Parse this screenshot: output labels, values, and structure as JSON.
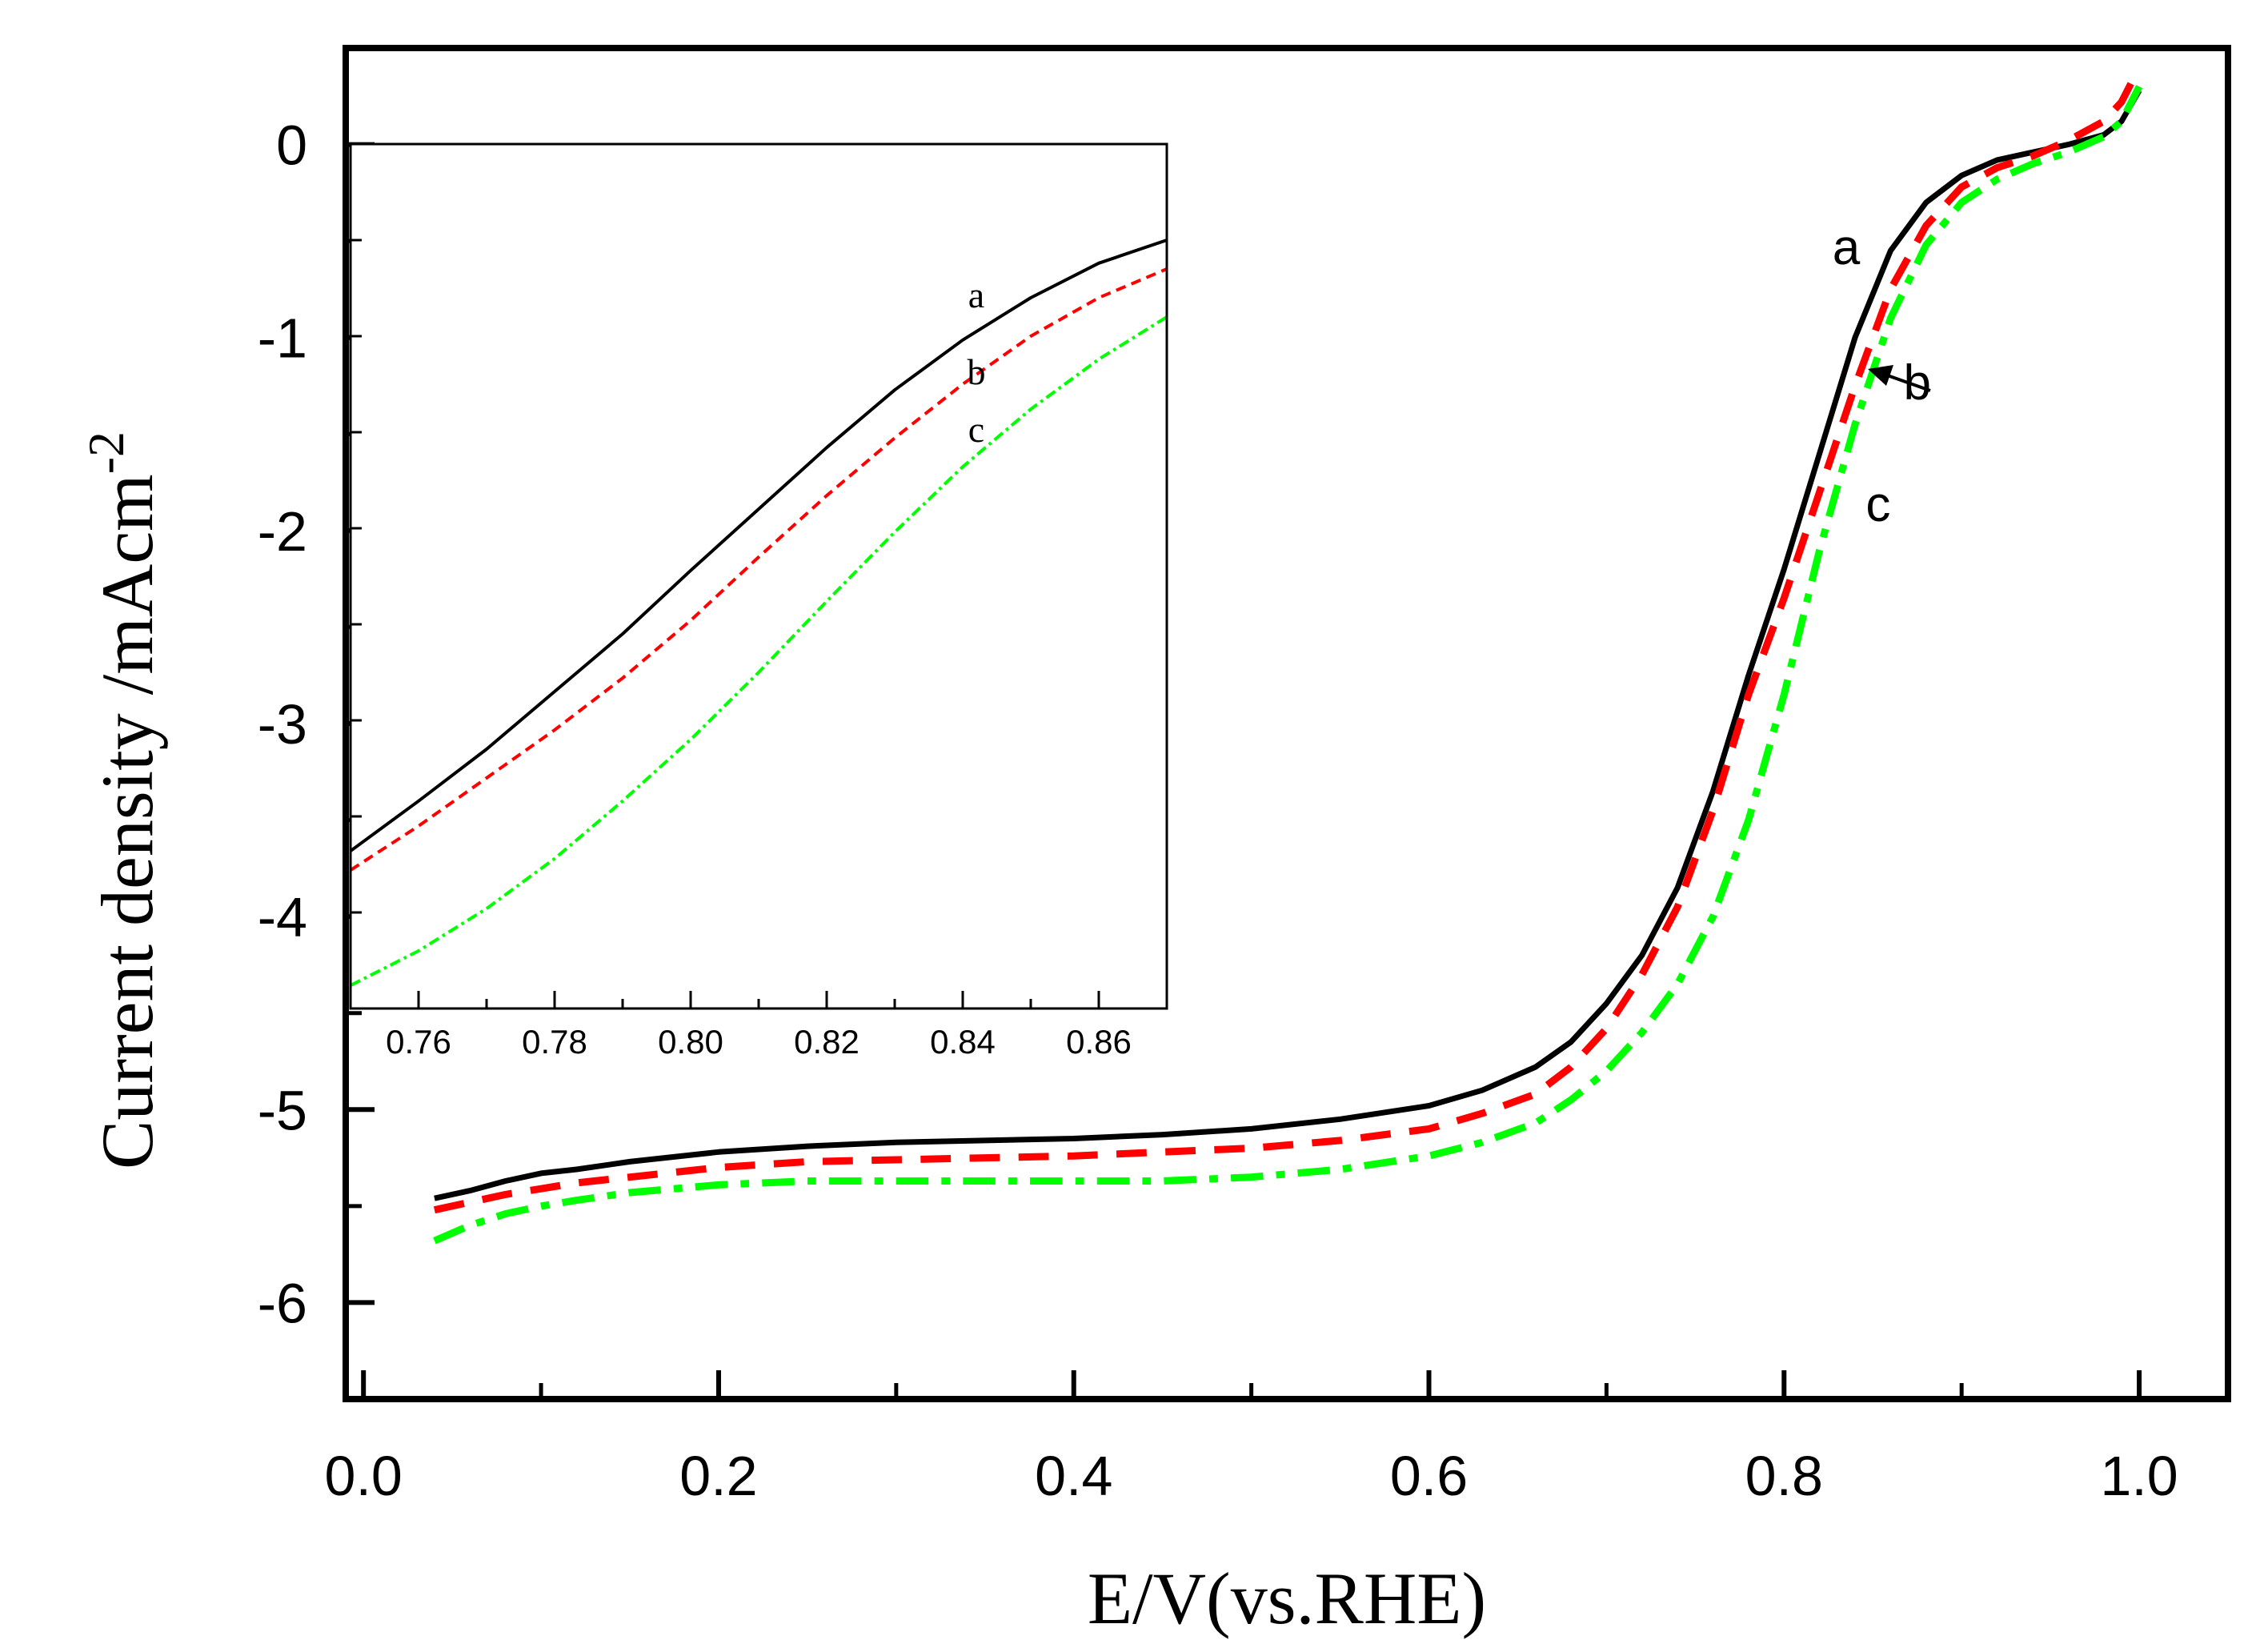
{
  "chart_data": [
    {
      "id": "main",
      "type": "line",
      "xlabel": "E/V(vs.RHE)",
      "ylabel_main": "Current density /mAcm",
      "ylabel_sup": "-2",
      "xlim": [
        -0.01,
        1.05
      ],
      "ylim": [
        -6.5,
        0.5
      ],
      "x_ticks": [
        0.0,
        0.2,
        0.4,
        0.6,
        0.8,
        1.0
      ],
      "x_tick_labels": [
        "0.0",
        "0.2",
        "0.4",
        "0.6",
        "0.8",
        "1.0"
      ],
      "y_ticks": [
        0,
        -1,
        -2,
        -3,
        -4,
        -5,
        -6
      ],
      "y_tick_labels": [
        "0",
        "-1",
        "-2",
        "-3",
        "-4",
        "-5",
        "-6"
      ],
      "series": [
        {
          "name": "a",
          "color": "#000000",
          "style": "solid",
          "points": [
            [
              0.04,
              -5.46
            ],
            [
              0.06,
              -5.42
            ],
            [
              0.08,
              -5.37
            ],
            [
              0.1,
              -5.33
            ],
            [
              0.12,
              -5.31
            ],
            [
              0.15,
              -5.27
            ],
            [
              0.2,
              -5.22
            ],
            [
              0.25,
              -5.19
            ],
            [
              0.3,
              -5.17
            ],
            [
              0.35,
              -5.16
            ],
            [
              0.4,
              -5.15
            ],
            [
              0.45,
              -5.13
            ],
            [
              0.5,
              -5.1
            ],
            [
              0.55,
              -5.05
            ],
            [
              0.6,
              -4.98
            ],
            [
              0.63,
              -4.9
            ],
            [
              0.66,
              -4.78
            ],
            [
              0.68,
              -4.65
            ],
            [
              0.7,
              -4.45
            ],
            [
              0.72,
              -4.2
            ],
            [
              0.74,
              -3.85
            ],
            [
              0.76,
              -3.35
            ],
            [
              0.78,
              -2.75
            ],
            [
              0.8,
              -2.2
            ],
            [
              0.82,
              -1.6
            ],
            [
              0.84,
              -1.0
            ],
            [
              0.86,
              -0.55
            ],
            [
              0.88,
              -0.3
            ],
            [
              0.9,
              -0.16
            ],
            [
              0.92,
              -0.08
            ],
            [
              0.94,
              -0.04
            ],
            [
              0.96,
              0.0
            ],
            [
              0.98,
              0.05
            ],
            [
              0.99,
              0.12
            ],
            [
              1.0,
              0.28
            ]
          ]
        },
        {
          "name": "b",
          "color": "#ff0000",
          "style": "dash",
          "points": [
            [
              0.04,
              -5.52
            ],
            [
              0.06,
              -5.48
            ],
            [
              0.08,
              -5.44
            ],
            [
              0.1,
              -5.41
            ],
            [
              0.12,
              -5.38
            ],
            [
              0.15,
              -5.35
            ],
            [
              0.2,
              -5.3
            ],
            [
              0.25,
              -5.27
            ],
            [
              0.3,
              -5.26
            ],
            [
              0.35,
              -5.25
            ],
            [
              0.4,
              -5.24
            ],
            [
              0.45,
              -5.22
            ],
            [
              0.5,
              -5.2
            ],
            [
              0.55,
              -5.16
            ],
            [
              0.6,
              -5.1
            ],
            [
              0.63,
              -5.02
            ],
            [
              0.66,
              -4.92
            ],
            [
              0.68,
              -4.78
            ],
            [
              0.7,
              -4.58
            ],
            [
              0.72,
              -4.3
            ],
            [
              0.74,
              -3.95
            ],
            [
              0.76,
              -3.45
            ],
            [
              0.78,
              -2.85
            ],
            [
              0.8,
              -2.35
            ],
            [
              0.82,
              -1.8
            ],
            [
              0.84,
              -1.25
            ],
            [
              0.86,
              -0.75
            ],
            [
              0.88,
              -0.42
            ],
            [
              0.9,
              -0.22
            ],
            [
              0.92,
              -0.12
            ],
            [
              0.94,
              -0.06
            ],
            [
              0.96,
              0.02
            ],
            [
              0.98,
              0.12
            ],
            [
              0.99,
              0.22
            ],
            [
              1.0,
              0.4
            ]
          ]
        },
        {
          "name": "c",
          "color": "#00ff00",
          "style": "dashdot",
          "points": [
            [
              0.04,
              -5.68
            ],
            [
              0.06,
              -5.6
            ],
            [
              0.08,
              -5.54
            ],
            [
              0.1,
              -5.5
            ],
            [
              0.12,
              -5.47
            ],
            [
              0.15,
              -5.43
            ],
            [
              0.2,
              -5.39
            ],
            [
              0.25,
              -5.37
            ],
            [
              0.3,
              -5.37
            ],
            [
              0.35,
              -5.37
            ],
            [
              0.4,
              -5.37
            ],
            [
              0.45,
              -5.37
            ],
            [
              0.5,
              -5.35
            ],
            [
              0.55,
              -5.31
            ],
            [
              0.6,
              -5.24
            ],
            [
              0.63,
              -5.17
            ],
            [
              0.66,
              -5.07
            ],
            [
              0.68,
              -4.95
            ],
            [
              0.7,
              -4.8
            ],
            [
              0.72,
              -4.6
            ],
            [
              0.74,
              -4.35
            ],
            [
              0.76,
              -4.0
            ],
            [
              0.78,
              -3.5
            ],
            [
              0.8,
              -2.85
            ],
            [
              0.82,
              -2.1
            ],
            [
              0.84,
              -1.45
            ],
            [
              0.86,
              -0.9
            ],
            [
              0.88,
              -0.52
            ],
            [
              0.9,
              -0.3
            ],
            [
              0.92,
              -0.18
            ],
            [
              0.94,
              -0.1
            ],
            [
              0.96,
              -0.04
            ],
            [
              0.98,
              0.04
            ],
            [
              0.99,
              0.12
            ],
            [
              1.0,
              0.3
            ]
          ]
        }
      ],
      "annotations": [
        {
          "text": "a",
          "x": 0.835,
          "y": -0.62
        },
        {
          "text": "b",
          "x": 0.875,
          "y": -1.32
        },
        {
          "text": "c",
          "x": 0.853,
          "y": -1.95
        }
      ]
    },
    {
      "id": "inset",
      "type": "line",
      "xlim": [
        0.75,
        0.87
      ],
      "ylim": [
        -4.5,
        0.0
      ],
      "x_ticks": [
        0.76,
        0.78,
        0.8,
        0.82,
        0.84,
        0.86
      ],
      "x_tick_labels": [
        "0.76",
        "0.78",
        "0.80",
        "0.82",
        "0.84",
        "0.86"
      ],
      "series": [
        {
          "name": "a",
          "color": "#000000",
          "style": "solid",
          "points": [
            [
              0.75,
              -3.68
            ],
            [
              0.76,
              -3.42
            ],
            [
              0.77,
              -3.15
            ],
            [
              0.78,
              -2.85
            ],
            [
              0.79,
              -2.55
            ],
            [
              0.8,
              -2.22
            ],
            [
              0.81,
              -1.9
            ],
            [
              0.82,
              -1.58
            ],
            [
              0.83,
              -1.28
            ],
            [
              0.84,
              -1.02
            ],
            [
              0.85,
              -0.8
            ],
            [
              0.86,
              -0.62
            ],
            [
              0.87,
              -0.5
            ]
          ]
        },
        {
          "name": "b",
          "color": "#ff0000",
          "style": "dash",
          "points": [
            [
              0.75,
              -3.78
            ],
            [
              0.76,
              -3.55
            ],
            [
              0.77,
              -3.3
            ],
            [
              0.78,
              -3.05
            ],
            [
              0.79,
              -2.78
            ],
            [
              0.8,
              -2.48
            ],
            [
              0.81,
              -2.15
            ],
            [
              0.82,
              -1.83
            ],
            [
              0.83,
              -1.53
            ],
            [
              0.84,
              -1.25
            ],
            [
              0.85,
              -1.0
            ],
            [
              0.86,
              -0.8
            ],
            [
              0.87,
              -0.65
            ]
          ]
        },
        {
          "name": "c",
          "color": "#00ff00",
          "style": "dashdot",
          "points": [
            [
              0.75,
              -4.38
            ],
            [
              0.76,
              -4.2
            ],
            [
              0.77,
              -3.98
            ],
            [
              0.78,
              -3.72
            ],
            [
              0.79,
              -3.42
            ],
            [
              0.8,
              -3.1
            ],
            [
              0.81,
              -2.75
            ],
            [
              0.82,
              -2.38
            ],
            [
              0.83,
              -2.02
            ],
            [
              0.84,
              -1.68
            ],
            [
              0.85,
              -1.38
            ],
            [
              0.86,
              -1.12
            ],
            [
              0.87,
              -0.9
            ]
          ]
        }
      ],
      "annotations": [
        {
          "text": "a",
          "x": 0.842,
          "y": -0.85
        },
        {
          "text": "b",
          "x": 0.842,
          "y": -1.25
        },
        {
          "text": "c",
          "x": 0.842,
          "y": -1.55
        }
      ]
    }
  ]
}
